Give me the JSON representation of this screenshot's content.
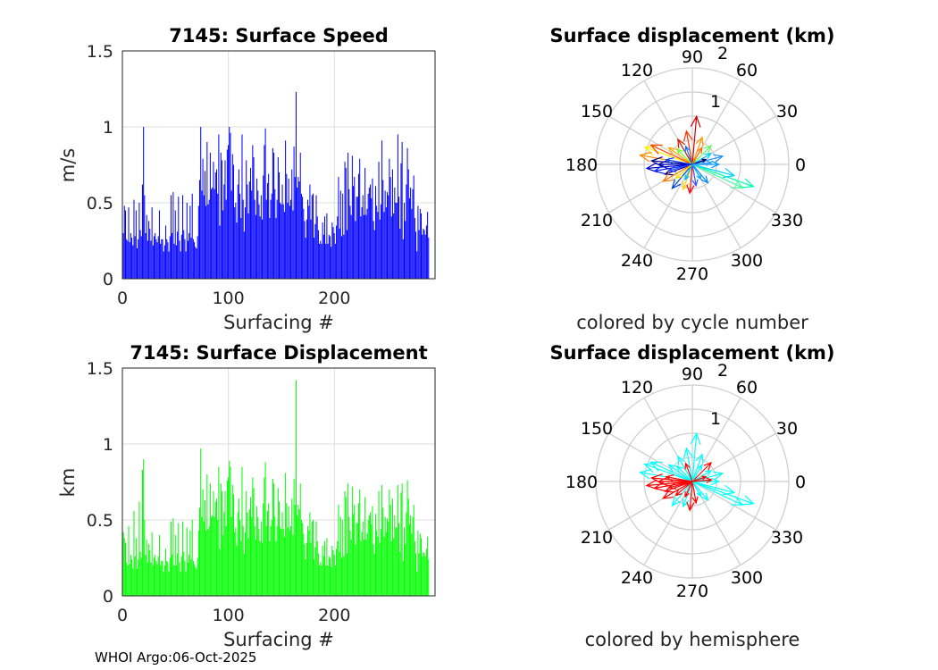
{
  "footer": "WHOI Argo:06-Oct-2025",
  "chart_data": [
    {
      "type": "bar",
      "title": "7145: Surface Speed",
      "xlabel": "Surfacing #",
      "ylabel": "m/s",
      "xlim": [
        0,
        295
      ],
      "ylim": [
        0,
        1.5
      ],
      "xticks": [
        "0",
        "100",
        "200"
      ],
      "yticks": [
        "0",
        "0.5",
        "1",
        "1.5"
      ],
      "color": "#0000ff",
      "values": [
        0.3,
        0.48,
        0.45,
        0.26,
        0.25,
        0.47,
        0.24,
        0.3,
        0.27,
        0.22,
        0.52,
        0.28,
        0.45,
        0.2,
        0.26,
        0.5,
        0.32,
        0.28,
        0.62,
        1.0,
        0.55,
        0.3,
        0.42,
        0.25,
        0.38,
        0.33,
        0.25,
        0.47,
        0.22,
        0.28,
        0.3,
        0.26,
        0.24,
        0.28,
        0.45,
        0.23,
        0.26,
        0.26,
        0.18,
        0.22,
        0.35,
        0.26,
        0.24,
        0.18,
        0.28,
        0.55,
        0.3,
        0.57,
        0.23,
        0.45,
        0.22,
        0.31,
        0.54,
        0.25,
        0.18,
        0.29,
        0.55,
        0.32,
        0.26,
        0.18,
        0.5,
        0.25,
        0.3,
        0.48,
        0.27,
        0.56,
        0.26,
        0.24,
        0.21,
        0.2,
        0.28,
        0.48,
        0.65,
        1.0,
        0.58,
        0.79,
        0.55,
        0.71,
        0.48,
        0.9,
        0.49,
        0.52,
        0.83,
        0.59,
        0.6,
        0.77,
        0.59,
        0.7,
        0.72,
        0.56,
        0.95,
        0.35,
        0.83,
        0.78,
        0.45,
        0.62,
        0.78,
        0.52,
        0.85,
        0.88,
        1.0,
        0.96,
        0.58,
        0.82,
        0.75,
        0.47,
        0.5,
        0.37,
        0.62,
        0.72,
        0.56,
        0.4,
        0.95,
        0.52,
        0.31,
        0.47,
        0.78,
        0.62,
        0.43,
        0.64,
        0.73,
        0.58,
        0.88,
        0.8,
        0.52,
        0.42,
        0.66,
        0.58,
        0.49,
        0.41,
        0.55,
        0.39,
        0.68,
        0.88,
        0.99,
        0.52,
        0.63,
        0.69,
        0.4,
        0.52,
        0.56,
        0.86,
        0.83,
        0.59,
        0.4,
        0.52,
        0.8,
        0.7,
        0.5,
        0.49,
        0.62,
        0.49,
        0.44,
        0.91,
        0.69,
        0.5,
        0.66,
        0.48,
        0.52,
        0.72,
        0.45,
        0.87,
        0.67,
        1.23,
        0.6,
        0.67,
        0.64,
        0.83,
        0.56,
        0.54,
        0.46,
        0.38,
        0.27,
        0.39,
        0.52,
        0.48,
        0.62,
        0.39,
        0.55,
        0.56,
        0.27,
        0.36,
        0.55,
        0.41,
        0.32,
        0.23,
        0.25,
        0.23,
        0.37,
        0.29,
        0.41,
        0.23,
        0.43,
        0.23,
        0.29,
        0.28,
        0.21,
        0.37,
        0.34,
        0.3,
        0.23,
        0.35,
        0.41,
        0.67,
        0.33,
        0.58,
        0.28,
        0.56,
        0.29,
        0.77,
        0.73,
        0.32,
        0.83,
        0.59,
        0.48,
        0.42,
        0.81,
        0.61,
        0.67,
        0.38,
        0.54,
        0.54,
        0.69,
        0.79,
        0.41,
        0.47,
        0.55,
        0.42,
        0.73,
        0.42,
        0.46,
        0.56,
        0.6,
        0.62,
        0.53,
        0.66,
        0.38,
        0.32,
        0.61,
        0.48,
        0.44,
        0.77,
        0.39,
        0.49,
        0.91,
        0.65,
        0.44,
        0.58,
        0.47,
        0.57,
        0.55,
        0.79,
        0.67,
        0.41,
        0.72,
        0.43,
        0.6,
        0.5,
        0.5,
        0.95,
        0.54,
        0.33,
        0.76,
        0.9,
        0.26,
        0.5,
        0.38,
        0.62,
        0.86,
        0.72,
        0.53,
        0.6,
        0.46,
        0.59,
        0.68,
        0.4,
        0.31,
        0.18,
        0.48,
        0.32,
        0.46,
        0.43,
        0.29,
        0.33,
        0.32,
        0.29,
        0.35,
        0.44,
        0.27
      ]
    },
    {
      "type": "polar-vectors",
      "title": "Surface displacement (km)",
      "caption": "colored by cycle number",
      "rlim": [
        0,
        2
      ],
      "rticks": [
        "1",
        "2"
      ],
      "angle_labels": [
        "0",
        "30",
        "60",
        "90",
        "120",
        "150",
        "180",
        "210",
        "240",
        "270",
        "300",
        "330"
      ],
      "vectors": [
        {
          "angle": 85,
          "r": 1.0,
          "color": "#cc0000"
        },
        {
          "angle": 100,
          "r": 0.7,
          "color": "#ff3300"
        },
        {
          "angle": 70,
          "r": 0.6,
          "color": "#ff9900"
        },
        {
          "angle": 160,
          "r": 1.05,
          "color": "#ffee00"
        },
        {
          "angle": 170,
          "r": 1.1,
          "color": "#ff8800"
        },
        {
          "angle": 155,
          "r": 0.95,
          "color": "#ff4400"
        },
        {
          "angle": 120,
          "r": 0.6,
          "color": "#cc2200"
        },
        {
          "angle": 175,
          "r": 0.85,
          "color": "#00008b"
        },
        {
          "angle": 185,
          "r": 0.95,
          "color": "#0000cc"
        },
        {
          "angle": 190,
          "r": 0.8,
          "color": "#0022ff"
        },
        {
          "angle": 200,
          "r": 0.6,
          "color": "#000099"
        },
        {
          "angle": 230,
          "r": 0.65,
          "color": "#0044cc"
        },
        {
          "angle": 250,
          "r": 0.55,
          "color": "#ffcc00"
        },
        {
          "angle": 265,
          "r": 0.6,
          "color": "#ff0000"
        },
        {
          "angle": 280,
          "r": 0.45,
          "color": "#3355ff"
        },
        {
          "angle": 300,
          "r": 0.35,
          "color": "#00aaff"
        },
        {
          "angle": 310,
          "r": 0.5,
          "color": "#0088ff"
        },
        {
          "angle": 340,
          "r": 1.35,
          "color": "#00ffaa"
        },
        {
          "angle": 335,
          "r": 1.15,
          "color": "#33ff99"
        },
        {
          "angle": 345,
          "r": 0.9,
          "color": "#00ccff"
        },
        {
          "angle": 0,
          "r": 0.55,
          "color": "#0099ff"
        },
        {
          "angle": 15,
          "r": 0.65,
          "color": "#1e90ff"
        },
        {
          "angle": 30,
          "r": 0.45,
          "color": "#00ccff"
        },
        {
          "angle": 45,
          "r": 0.55,
          "color": "#55ff55"
        },
        {
          "angle": 60,
          "r": 0.4,
          "color": "#ff6600"
        },
        {
          "angle": 135,
          "r": 0.45,
          "color": "#66ff33"
        },
        {
          "angle": 145,
          "r": 0.6,
          "color": "#ffaa00"
        },
        {
          "angle": 210,
          "r": 0.7,
          "color": "#ff7700"
        },
        {
          "angle": 195,
          "r": 0.5,
          "color": "#2244ff"
        },
        {
          "angle": 220,
          "r": 0.45,
          "color": "#ffdd00"
        },
        {
          "angle": 245,
          "r": 0.35,
          "color": "#00bbff"
        },
        {
          "angle": 110,
          "r": 0.4,
          "color": "#0077ff"
        },
        {
          "angle": 20,
          "r": 0.3,
          "color": "#000066"
        },
        {
          "angle": 180,
          "r": 0.7,
          "color": "#0000aa"
        },
        {
          "angle": 170,
          "r": 0.55,
          "color": "#0044ff"
        },
        {
          "angle": 5,
          "r": 0.4,
          "color": "#3399ff"
        }
      ]
    },
    {
      "type": "bar",
      "title": "7145: Surface Displacement",
      "xlabel": "Surfacing #",
      "ylabel": "km",
      "xlim": [
        0,
        295
      ],
      "ylim": [
        0,
        1.5
      ],
      "xticks": [
        "0",
        "100",
        "200"
      ],
      "yticks": [
        "0",
        "0.5",
        "1",
        "1.5"
      ],
      "color": "#00ff00",
      "values": [
        0.42,
        0.38,
        0.35,
        0.22,
        0.2,
        0.46,
        0.21,
        0.27,
        0.24,
        0.18,
        0.56,
        0.26,
        0.38,
        0.18,
        0.24,
        0.62,
        0.29,
        0.25,
        0.83,
        0.9,
        0.5,
        0.27,
        0.37,
        0.22,
        0.34,
        0.3,
        0.22,
        0.42,
        0.2,
        0.25,
        0.27,
        0.23,
        0.21,
        0.26,
        0.4,
        0.2,
        0.23,
        0.23,
        0.16,
        0.2,
        0.31,
        0.23,
        0.22,
        0.16,
        0.25,
        0.49,
        0.27,
        0.51,
        0.2,
        0.4,
        0.2,
        0.28,
        0.48,
        0.22,
        0.16,
        0.26,
        0.49,
        0.29,
        0.23,
        0.16,
        0.45,
        0.22,
        0.27,
        0.43,
        0.24,
        0.5,
        0.23,
        0.21,
        0.19,
        0.18,
        0.25,
        0.43,
        0.58,
        0.97,
        0.52,
        0.7,
        0.49,
        0.63,
        0.43,
        0.8,
        0.44,
        0.46,
        0.74,
        0.52,
        0.53,
        0.69,
        0.52,
        0.62,
        0.64,
        0.5,
        0.85,
        0.31,
        0.74,
        0.69,
        0.4,
        0.55,
        0.69,
        0.46,
        0.76,
        0.78,
        0.89,
        0.85,
        0.52,
        0.73,
        0.67,
        0.42,
        0.45,
        0.33,
        0.55,
        0.64,
        0.5,
        0.36,
        0.85,
        0.46,
        0.28,
        0.42,
        0.69,
        0.55,
        0.38,
        0.57,
        0.65,
        0.52,
        0.78,
        0.71,
        0.46,
        0.37,
        0.59,
        0.52,
        0.44,
        0.36,
        0.49,
        0.35,
        0.61,
        0.78,
        0.88,
        0.46,
        0.56,
        0.61,
        0.36,
        0.46,
        0.5,
        0.77,
        0.74,
        0.52,
        0.36,
        0.46,
        0.71,
        0.62,
        0.45,
        0.44,
        0.55,
        0.44,
        0.39,
        0.81,
        0.61,
        0.45,
        0.59,
        0.43,
        0.46,
        0.64,
        0.4,
        0.77,
        0.6,
        1.42,
        0.53,
        0.6,
        0.57,
        0.74,
        0.5,
        0.48,
        0.41,
        0.34,
        0.24,
        0.35,
        0.46,
        0.43,
        0.55,
        0.35,
        0.49,
        0.5,
        0.24,
        0.32,
        0.49,
        0.36,
        0.28,
        0.2,
        0.22,
        0.2,
        0.33,
        0.26,
        0.36,
        0.2,
        0.38,
        0.2,
        0.26,
        0.25,
        0.19,
        0.33,
        0.3,
        0.27,
        0.2,
        0.31,
        0.36,
        0.6,
        0.29,
        0.52,
        0.25,
        0.5,
        0.26,
        0.69,
        0.65,
        0.28,
        0.74,
        0.52,
        0.43,
        0.37,
        0.72,
        0.54,
        0.6,
        0.34,
        0.48,
        0.48,
        0.61,
        0.7,
        0.36,
        0.42,
        0.49,
        0.37,
        0.65,
        0.37,
        0.41,
        0.5,
        0.53,
        0.55,
        0.47,
        0.59,
        0.34,
        0.28,
        0.54,
        0.43,
        0.39,
        0.69,
        0.35,
        0.44,
        0.73,
        0.58,
        0.39,
        0.52,
        0.42,
        0.51,
        0.49,
        0.7,
        0.6,
        0.36,
        0.64,
        0.38,
        0.53,
        0.45,
        0.45,
        0.73,
        0.48,
        0.29,
        0.68,
        0.74,
        0.23,
        0.45,
        0.34,
        0.55,
        0.76,
        0.64,
        0.47,
        0.53,
        0.41,
        0.52,
        0.6,
        0.36,
        0.28,
        0.16,
        0.43,
        0.28,
        0.41,
        0.38,
        0.26,
        0.29,
        0.28,
        0.26,
        0.31,
        0.39,
        0.24
      ]
    },
    {
      "type": "polar-vectors",
      "title": "Surface displacement (km)",
      "caption": "colored by hemisphere",
      "rlim": [
        0,
        2
      ],
      "rticks": [
        "1",
        "2"
      ],
      "angle_labels": [
        "0",
        "30",
        "60",
        "90",
        "120",
        "150",
        "180",
        "210",
        "240",
        "270",
        "300",
        "330"
      ],
      "vectors": [
        {
          "angle": 85,
          "r": 1.0,
          "color": "#00ffff"
        },
        {
          "angle": 100,
          "r": 0.7,
          "color": "#00ffff"
        },
        {
          "angle": 70,
          "r": 0.6,
          "color": "#00ffff"
        },
        {
          "angle": 160,
          "r": 1.05,
          "color": "#00ffff"
        },
        {
          "angle": 170,
          "r": 1.1,
          "color": "#00ffff"
        },
        {
          "angle": 155,
          "r": 0.95,
          "color": "#00ffff"
        },
        {
          "angle": 120,
          "r": 0.6,
          "color": "#00ffff"
        },
        {
          "angle": 175,
          "r": 0.85,
          "color": "#ff0000"
        },
        {
          "angle": 185,
          "r": 0.95,
          "color": "#ff0000"
        },
        {
          "angle": 190,
          "r": 0.8,
          "color": "#ff0000"
        },
        {
          "angle": 200,
          "r": 0.6,
          "color": "#ff0000"
        },
        {
          "angle": 230,
          "r": 0.65,
          "color": "#00ffff"
        },
        {
          "angle": 250,
          "r": 0.55,
          "color": "#00ffff"
        },
        {
          "angle": 265,
          "r": 0.6,
          "color": "#ff0000"
        },
        {
          "angle": 280,
          "r": 0.45,
          "color": "#ff0000"
        },
        {
          "angle": 300,
          "r": 0.35,
          "color": "#00ffff"
        },
        {
          "angle": 310,
          "r": 0.5,
          "color": "#00ffff"
        },
        {
          "angle": 340,
          "r": 1.35,
          "color": "#00ffff"
        },
        {
          "angle": 335,
          "r": 1.15,
          "color": "#00ffff"
        },
        {
          "angle": 345,
          "r": 0.9,
          "color": "#00ffff"
        },
        {
          "angle": 0,
          "r": 0.55,
          "color": "#00ffff"
        },
        {
          "angle": 15,
          "r": 0.65,
          "color": "#00ffff"
        },
        {
          "angle": 30,
          "r": 0.45,
          "color": "#00ffff"
        },
        {
          "angle": 45,
          "r": 0.55,
          "color": "#ff0000"
        },
        {
          "angle": 60,
          "r": 0.4,
          "color": "#00ffff"
        },
        {
          "angle": 135,
          "r": 0.45,
          "color": "#00ffff"
        },
        {
          "angle": 145,
          "r": 0.6,
          "color": "#00ffff"
        },
        {
          "angle": 210,
          "r": 0.7,
          "color": "#ff0000"
        },
        {
          "angle": 195,
          "r": 0.5,
          "color": "#ff0000"
        },
        {
          "angle": 220,
          "r": 0.45,
          "color": "#ff0000"
        },
        {
          "angle": 245,
          "r": 0.35,
          "color": "#ff0000"
        },
        {
          "angle": 110,
          "r": 0.4,
          "color": "#ff0000"
        },
        {
          "angle": 20,
          "r": 0.3,
          "color": "#ff0000"
        },
        {
          "angle": 180,
          "r": 0.7,
          "color": "#ff0000"
        },
        {
          "angle": 170,
          "r": 0.55,
          "color": "#ff0000"
        },
        {
          "angle": 5,
          "r": 0.4,
          "color": "#ff0000"
        }
      ]
    }
  ]
}
